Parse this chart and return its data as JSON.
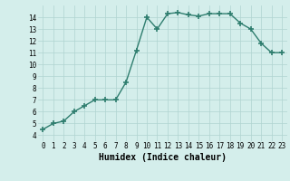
{
  "x": [
    0,
    1,
    2,
    3,
    4,
    5,
    6,
    7,
    8,
    9,
    10,
    11,
    12,
    13,
    14,
    15,
    16,
    17,
    18,
    19,
    20,
    21,
    22,
    23
  ],
  "y": [
    4.5,
    5.0,
    5.2,
    6.0,
    6.5,
    7.0,
    7.0,
    7.0,
    8.5,
    11.2,
    14.0,
    13.0,
    14.3,
    14.4,
    14.2,
    14.1,
    14.3,
    14.3,
    14.3,
    13.5,
    13.0,
    11.8,
    11.0,
    11.0
  ],
  "line_color": "#2e7d6e",
  "marker": "+",
  "markersize": 4,
  "markeredgewidth": 1.2,
  "linewidth": 1.0,
  "xlabel": "Humidex (Indice chaleur)",
  "xlim": [
    -0.5,
    23.5
  ],
  "ylim": [
    3.5,
    15.0
  ],
  "yticks": [
    4,
    5,
    6,
    7,
    8,
    9,
    10,
    11,
    12,
    13,
    14
  ],
  "xticks": [
    0,
    1,
    2,
    3,
    4,
    5,
    6,
    7,
    8,
    9,
    10,
    11,
    12,
    13,
    14,
    15,
    16,
    17,
    18,
    19,
    20,
    21,
    22,
    23
  ],
  "bg_color": "#d4eeeb",
  "grid_color": "#b0d4d0",
  "tick_fontsize": 5.5,
  "xlabel_fontsize": 7
}
